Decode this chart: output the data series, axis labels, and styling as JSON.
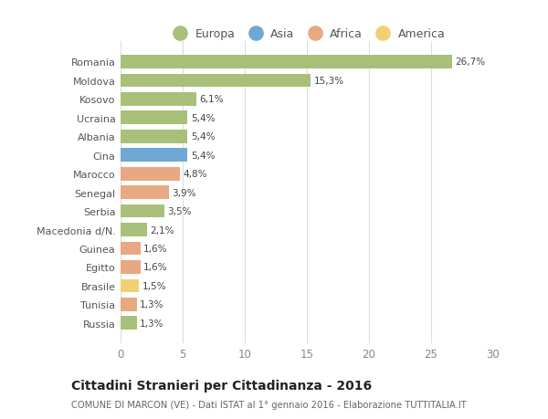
{
  "countries": [
    "Romania",
    "Moldova",
    "Kosovo",
    "Ucraina",
    "Albania",
    "Cina",
    "Marocco",
    "Senegal",
    "Serbia",
    "Macedonia d/N.",
    "Guinea",
    "Egitto",
    "Brasile",
    "Tunisia",
    "Russia"
  ],
  "values": [
    26.7,
    15.3,
    6.1,
    5.4,
    5.4,
    5.4,
    4.8,
    3.9,
    3.5,
    2.1,
    1.6,
    1.6,
    1.5,
    1.3,
    1.3
  ],
  "labels": [
    "26,7%",
    "15,3%",
    "6,1%",
    "5,4%",
    "5,4%",
    "5,4%",
    "4,8%",
    "3,9%",
    "3,5%",
    "2,1%",
    "1,6%",
    "1,6%",
    "1,5%",
    "1,3%",
    "1,3%"
  ],
  "colors": [
    "#a8c07a",
    "#a8c07a",
    "#a8c07a",
    "#a8c07a",
    "#a8c07a",
    "#6fa8d4",
    "#e8a882",
    "#e8a882",
    "#a8c07a",
    "#a8c07a",
    "#e8a882",
    "#e8a882",
    "#f0d070",
    "#e8a882",
    "#a8c07a"
  ],
  "legend_labels": [
    "Europa",
    "Asia",
    "Africa",
    "America"
  ],
  "legend_colors": [
    "#a8c07a",
    "#6fa8d4",
    "#e8a882",
    "#f0d070"
  ],
  "title": "Cittadini Stranieri per Cittadinanza - 2016",
  "subtitle": "COMUNE DI MARCON (VE) - Dati ISTAT al 1° gennaio 2016 - Elaborazione TUTTITALIA.IT",
  "xlim": [
    0,
    30
  ],
  "xticks": [
    0,
    5,
    10,
    15,
    20,
    25,
    30
  ],
  "background_color": "#ffffff",
  "grid_color": "#dddddd",
  "bar_height": 0.72
}
